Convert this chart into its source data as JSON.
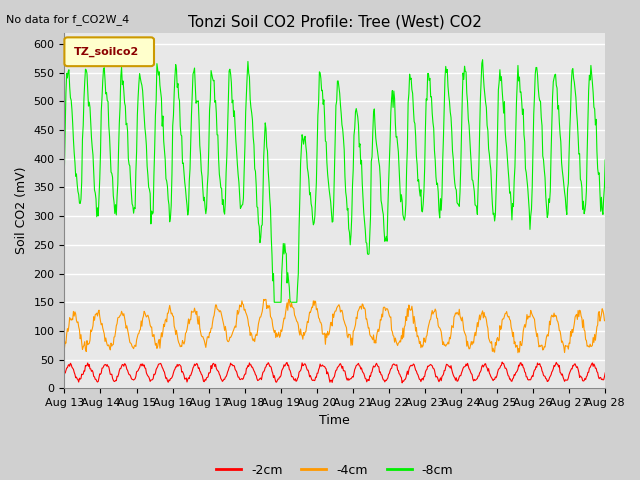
{
  "title": "Tonzi Soil CO2 Profile: Tree (West) CO2",
  "top_left_text": "No data for f_CO2W_4",
  "ylabel": "Soil CO2 (mV)",
  "xlabel": "Time",
  "legend_box_label": "TZ_soilco2",
  "legend_box_color": "#ffffcc",
  "legend_box_edge": "#cc9900",
  "fig_bg_color": "#d0d0d0",
  "axes_bg_color": "#e8e8e8",
  "ylim": [
    0,
    620
  ],
  "yticks": [
    0,
    50,
    100,
    150,
    200,
    250,
    300,
    350,
    400,
    450,
    500,
    550,
    600
  ],
  "xstart_day": 13,
  "xend_day": 28,
  "xtick_days": [
    13,
    14,
    15,
    16,
    17,
    18,
    19,
    20,
    21,
    22,
    23,
    24,
    25,
    26,
    27,
    28
  ],
  "line_colors": {
    "2cm": "#ff0000",
    "4cm": "#ff9900",
    "8cm": "#00ee00"
  },
  "legend_labels": [
    "-2cm",
    "-4cm",
    "-8cm"
  ],
  "grid_color": "#cccccc",
  "title_fontsize": 11,
  "label_fontsize": 9,
  "tick_fontsize": 8
}
